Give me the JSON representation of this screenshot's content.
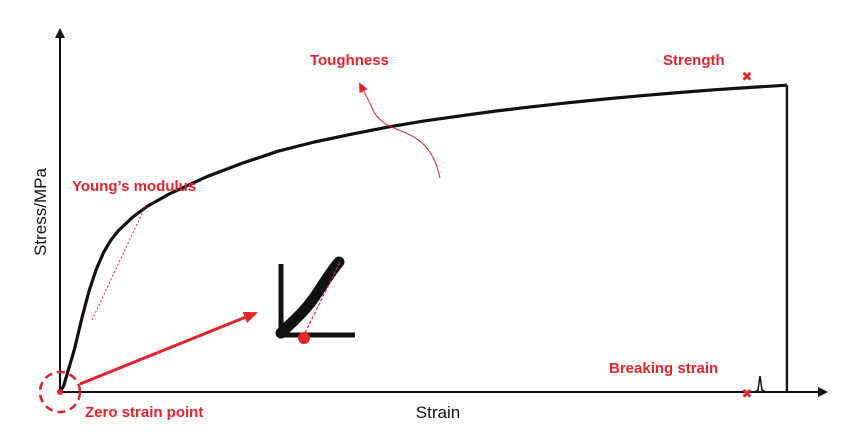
{
  "chart_data": {
    "type": "line",
    "xlabel": "Strain",
    "ylabel": "Stress/MPa",
    "grid": false,
    "series": [
      {
        "name": "",
        "x": [
          0,
          0.5,
          1,
          2,
          3,
          4,
          5,
          6,
          7,
          8,
          10,
          12,
          15,
          20,
          25,
          30,
          35,
          40,
          45,
          50,
          55,
          60,
          65,
          70,
          75,
          80,
          85,
          90,
          95,
          100
        ],
        "y": [
          0,
          2,
          6,
          14,
          24,
          33,
          40,
          45.5,
          49.5,
          52.5,
          57,
          60.5,
          64.5,
          70,
          74.5,
          78.5,
          81.5,
          84,
          86.3,
          88.3,
          90,
          91.6,
          93,
          94.3,
          95.5,
          96.6,
          97.6,
          98.5,
          99.3,
          100
        ]
      }
    ],
    "xlim": [
      0,
      104
    ],
    "ylim": [
      0,
      118
    ],
    "annotations": {
      "toughness": "Toughness",
      "strength": "Strength",
      "youngs_modulus": "Young’s modulus",
      "breaking_strain": "Breaking strain",
      "zero_strain_point": "Zero strain point"
    }
  },
  "colors": {
    "curve": "#111111",
    "annotation": "#e0262a",
    "axis": "#111111"
  }
}
